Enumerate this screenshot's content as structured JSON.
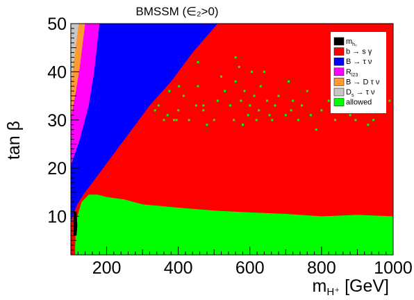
{
  "chart_data": {
    "type": "scatter",
    "title": "BMSSM (∈₂>0)",
    "xlabel": "m",
    "xlabel_sub": "H⁺",
    "xlabel_unit": " [GeV]",
    "ylabel": "tan β",
    "xlim": [
      100,
      1000
    ],
    "ylim": [
      2,
      50
    ],
    "x_ticks": [
      200,
      400,
      600,
      800,
      1000
    ],
    "y_ticks": [
      10,
      20,
      30,
      40,
      50
    ],
    "regions": [
      {
        "name": "m_h0",
        "label": "m",
        "label_sub": "h₀",
        "color": "#000000",
        "polygon": [
          [
            108,
            6
          ],
          [
            116,
            6
          ],
          [
            118,
            8
          ],
          [
            116,
            11
          ],
          [
            108,
            11
          ]
        ]
      },
      {
        "name": "b_to_s_gamma",
        "label": "b → s γ",
        "color": "#ff0000",
        "polygon": [
          [
            100,
            2
          ],
          [
            1000,
            2
          ],
          [
            1000,
            50
          ],
          [
            100,
            50
          ]
        ]
      },
      {
        "name": "B_to_tau_nu",
        "label": "B → τ ν",
        "color": "#0000ff",
        "polygon": [
          [
            100,
            9
          ],
          [
            108,
            10.5
          ],
          [
            118,
            12.5
          ],
          [
            135,
            14.5
          ],
          [
            150,
            16
          ],
          [
            175,
            18.5
          ],
          [
            210,
            22
          ],
          [
            260,
            27
          ],
          [
            320,
            33
          ],
          [
            380,
            38
          ],
          [
            440,
            44
          ],
          [
            510,
            50
          ],
          [
            100,
            50
          ]
        ]
      },
      {
        "name": "R_l23",
        "label": "R",
        "label_sub": "l23",
        "color": "#ff00ff",
        "polygon": [
          [
            100,
            20.5
          ],
          [
            125,
            26
          ],
          [
            150,
            33
          ],
          [
            165,
            40
          ],
          [
            180,
            50
          ],
          [
            100,
            50
          ]
        ]
      },
      {
        "name": "B_to_D_tau_nu",
        "label": "B → D τ ν",
        "color": "#ff9933",
        "polygon": [
          [
            100,
            30.5
          ],
          [
            112,
            35
          ],
          [
            125,
            41
          ],
          [
            140,
            50
          ],
          [
            100,
            50
          ]
        ]
      },
      {
        "name": "Ds_to_tau_nu",
        "label": "D",
        "label_sub": "s",
        "label_tail": " → τ ν",
        "color": "#c8c8c8",
        "polygon": [
          [
            100,
            37
          ],
          [
            108,
            42
          ],
          [
            115,
            46
          ],
          [
            122,
            50
          ],
          [
            100,
            50
          ]
        ]
      },
      {
        "name": "allowed",
        "label": "allowed",
        "color": "#00ff00",
        "polygon": [
          [
            112,
            2
          ],
          [
            1000,
            2
          ],
          [
            1000,
            10
          ],
          [
            900,
            10.3
          ],
          [
            800,
            10
          ],
          [
            700,
            10.5
          ],
          [
            600,
            10.8
          ],
          [
            500,
            11.2
          ],
          [
            400,
            11.8
          ],
          [
            300,
            12.5
          ],
          [
            250,
            13.5
          ],
          [
            200,
            14
          ],
          [
            175,
            14.5
          ],
          [
            150,
            14.5
          ],
          [
            130,
            13
          ],
          [
            118,
            10
          ],
          [
            114,
            7
          ],
          [
            112,
            4
          ]
        ]
      }
    ],
    "scatter_points": [
      [
        345,
        33
      ],
      [
        360,
        30
      ],
      [
        370,
        31
      ],
      [
        388,
        30
      ],
      [
        400,
        32
      ],
      [
        402,
        37
      ],
      [
        415,
        35
      ],
      [
        430,
        30
      ],
      [
        450,
        33
      ],
      [
        455,
        37
      ],
      [
        470,
        32
      ],
      [
        480,
        29
      ],
      [
        500,
        30
      ],
      [
        510,
        34
      ],
      [
        520,
        39
      ],
      [
        530,
        36
      ],
      [
        545,
        33
      ],
      [
        555,
        30
      ],
      [
        560,
        38
      ],
      [
        570,
        41
      ],
      [
        575,
        34
      ],
      [
        580,
        29
      ],
      [
        585,
        36
      ],
      [
        595,
        31
      ],
      [
        600,
        33
      ],
      [
        605,
        40
      ],
      [
        612,
        35
      ],
      [
        618,
        30
      ],
      [
        625,
        32
      ],
      [
        630,
        37
      ],
      [
        640,
        40
      ],
      [
        648,
        34
      ],
      [
        655,
        31
      ],
      [
        662,
        30
      ],
      [
        670,
        33
      ],
      [
        680,
        35
      ],
      [
        700,
        31
      ],
      [
        708,
        38
      ],
      [
        715,
        32
      ],
      [
        720,
        34
      ],
      [
        735,
        30
      ],
      [
        745,
        33
      ],
      [
        760,
        36
      ],
      [
        770,
        31
      ],
      [
        785,
        28
      ],
      [
        800,
        32
      ],
      [
        820,
        34
      ],
      [
        838,
        30
      ],
      [
        850,
        33
      ],
      [
        860,
        37
      ],
      [
        880,
        31
      ],
      [
        895,
        30
      ],
      [
        900,
        39
      ],
      [
        918,
        35
      ],
      [
        930,
        29
      ],
      [
        945,
        30
      ],
      [
        960,
        38
      ],
      [
        975,
        33
      ],
      [
        990,
        34
      ],
      [
        560,
        43
      ],
      [
        455,
        42
      ],
      [
        335,
        32
      ],
      [
        375,
        36
      ],
      [
        395,
        30
      ],
      [
        470,
        33
      ]
    ]
  }
}
